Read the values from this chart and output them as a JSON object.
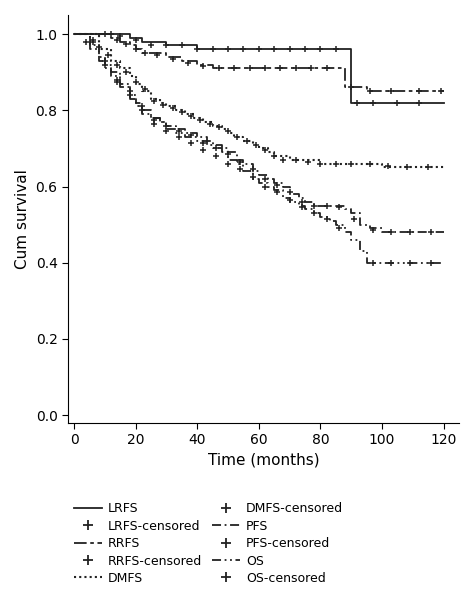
{
  "xlabel": "Time (months)",
  "ylabel": "Cum survival",
  "xlim": [
    -2,
    125
  ],
  "ylim": [
    -0.02,
    1.05
  ],
  "xticks": [
    0,
    20,
    40,
    60,
    80,
    100,
    120
  ],
  "yticks": [
    0.0,
    0.2,
    0.4,
    0.6,
    0.8,
    1.0
  ],
  "figsize": [
    4.74,
    6.04
  ],
  "dpi": 100,
  "color": "#222222",
  "curves": {
    "LRFS": {
      "times": [
        0,
        10,
        18,
        22,
        30,
        40,
        50,
        60,
        70,
        80,
        88,
        90,
        100,
        110,
        120
      ],
      "surv": [
        1.0,
        1.0,
        0.99,
        0.98,
        0.97,
        0.96,
        0.96,
        0.96,
        0.96,
        0.96,
        0.96,
        0.82,
        0.82,
        0.82,
        0.82
      ],
      "censored_times": [
        12,
        15,
        20,
        25,
        30,
        35,
        40,
        45,
        50,
        55,
        60,
        65,
        70,
        75,
        80,
        85,
        92,
        97,
        105,
        112
      ],
      "censored_surv": [
        1.0,
        0.995,
        0.985,
        0.97,
        0.97,
        0.97,
        0.96,
        0.96,
        0.96,
        0.96,
        0.96,
        0.96,
        0.96,
        0.96,
        0.96,
        0.96,
        0.82,
        0.82,
        0.82,
        0.82
      ]
    },
    "RRFS": {
      "times": [
        0,
        8,
        12,
        15,
        18,
        20,
        22,
        25,
        30,
        35,
        40,
        45,
        50,
        55,
        60,
        65,
        70,
        75,
        80,
        85,
        88,
        95,
        100,
        110,
        120
      ],
      "surv": [
        1.0,
        1.0,
        0.99,
        0.98,
        0.97,
        0.96,
        0.95,
        0.95,
        0.94,
        0.93,
        0.92,
        0.91,
        0.91,
        0.91,
        0.91,
        0.91,
        0.91,
        0.91,
        0.91,
        0.91,
        0.86,
        0.85,
        0.85,
        0.85,
        0.85
      ],
      "censored_times": [
        10,
        14,
        17,
        20,
        23,
        27,
        32,
        37,
        42,
        47,
        52,
        57,
        62,
        67,
        72,
        77,
        82,
        90,
        96,
        103,
        112,
        119
      ],
      "censored_surv": [
        1.0,
        0.985,
        0.975,
        0.96,
        0.95,
        0.945,
        0.935,
        0.925,
        0.915,
        0.91,
        0.91,
        0.91,
        0.91,
        0.91,
        0.91,
        0.91,
        0.91,
        0.86,
        0.85,
        0.85,
        0.85,
        0.85
      ]
    },
    "DMFS": {
      "times": [
        0,
        8,
        12,
        15,
        18,
        20,
        22,
        25,
        28,
        30,
        33,
        36,
        39,
        42,
        45,
        48,
        50,
        52,
        55,
        58,
        60,
        63,
        65,
        70,
        75,
        80,
        85,
        90,
        95,
        100,
        110,
        120
      ],
      "surv": [
        1.0,
        0.96,
        0.93,
        0.91,
        0.89,
        0.87,
        0.85,
        0.83,
        0.82,
        0.81,
        0.8,
        0.79,
        0.78,
        0.77,
        0.76,
        0.75,
        0.74,
        0.73,
        0.72,
        0.71,
        0.7,
        0.69,
        0.68,
        0.67,
        0.67,
        0.66,
        0.66,
        0.66,
        0.66,
        0.65,
        0.65,
        0.65
      ],
      "censored_times": [
        4,
        8,
        11,
        14,
        17,
        20,
        23,
        26,
        29,
        32,
        35,
        38,
        41,
        44,
        47,
        50,
        53,
        56,
        59,
        62,
        65,
        68,
        72,
        76,
        80,
        85,
        90,
        96,
        102,
        108,
        115
      ],
      "censored_surv": [
        0.98,
        0.965,
        0.945,
        0.92,
        0.9,
        0.875,
        0.855,
        0.825,
        0.815,
        0.805,
        0.795,
        0.785,
        0.775,
        0.765,
        0.755,
        0.745,
        0.73,
        0.72,
        0.71,
        0.695,
        0.68,
        0.67,
        0.67,
        0.665,
        0.66,
        0.66,
        0.66,
        0.66,
        0.655,
        0.65,
        0.65
      ]
    },
    "PFS": {
      "times": [
        0,
        5,
        8,
        10,
        12,
        15,
        18,
        20,
        22,
        25,
        28,
        30,
        33,
        36,
        40,
        43,
        45,
        48,
        50,
        53,
        55,
        58,
        60,
        63,
        65,
        68,
        70,
        73,
        75,
        78,
        80,
        83,
        85,
        88,
        90,
        93,
        96,
        100,
        105,
        110,
        120
      ],
      "surv": [
        1.0,
        0.97,
        0.94,
        0.92,
        0.9,
        0.87,
        0.84,
        0.82,
        0.8,
        0.78,
        0.77,
        0.76,
        0.75,
        0.74,
        0.73,
        0.72,
        0.71,
        0.7,
        0.69,
        0.67,
        0.66,
        0.64,
        0.63,
        0.62,
        0.61,
        0.6,
        0.58,
        0.57,
        0.56,
        0.55,
        0.55,
        0.55,
        0.55,
        0.54,
        0.53,
        0.5,
        0.49,
        0.48,
        0.48,
        0.48,
        0.48
      ],
      "censored_times": [
        6,
        10,
        14,
        18,
        22,
        26,
        30,
        34,
        38,
        42,
        46,
        50,
        54,
        58,
        62,
        66,
        70,
        74,
        78,
        82,
        86,
        91,
        97,
        103,
        109,
        116
      ],
      "censored_surv": [
        0.985,
        0.93,
        0.88,
        0.85,
        0.81,
        0.775,
        0.76,
        0.745,
        0.735,
        0.715,
        0.7,
        0.685,
        0.665,
        0.645,
        0.62,
        0.605,
        0.585,
        0.56,
        0.55,
        0.55,
        0.545,
        0.515,
        0.485,
        0.48,
        0.48,
        0.48
      ]
    },
    "OS": {
      "times": [
        0,
        5,
        8,
        10,
        12,
        15,
        18,
        20,
        22,
        25,
        28,
        30,
        33,
        36,
        40,
        43,
        45,
        48,
        50,
        53,
        55,
        58,
        60,
        63,
        65,
        68,
        70,
        73,
        75,
        78,
        80,
        83,
        85,
        88,
        90,
        93,
        95,
        100,
        105,
        110,
        120
      ],
      "surv": [
        1.0,
        0.96,
        0.93,
        0.91,
        0.89,
        0.86,
        0.83,
        0.81,
        0.79,
        0.78,
        0.77,
        0.75,
        0.74,
        0.73,
        0.72,
        0.71,
        0.7,
        0.69,
        0.67,
        0.66,
        0.64,
        0.62,
        0.61,
        0.6,
        0.59,
        0.57,
        0.56,
        0.55,
        0.54,
        0.53,
        0.52,
        0.51,
        0.5,
        0.48,
        0.46,
        0.43,
        0.4,
        0.4,
        0.4,
        0.4,
        0.4
      ],
      "censored_times": [
        6,
        10,
        14,
        18,
        22,
        26,
        30,
        34,
        38,
        42,
        46,
        50,
        54,
        58,
        62,
        66,
        70,
        74,
        78,
        82,
        86,
        97,
        103,
        109,
        116
      ],
      "censored_surv": [
        0.98,
        0.92,
        0.875,
        0.84,
        0.8,
        0.765,
        0.745,
        0.73,
        0.715,
        0.695,
        0.68,
        0.66,
        0.645,
        0.625,
        0.6,
        0.585,
        0.565,
        0.545,
        0.53,
        0.515,
        0.49,
        0.4,
        0.4,
        0.4,
        0.4
      ]
    }
  },
  "legend_curves": [
    "LRFS",
    "RRFS",
    "DMFS",
    "PFS",
    "OS"
  ],
  "legend_censored": [
    "LRFS-censored",
    "RRFS-censored",
    "DMFS-censored",
    "PFS-censored",
    "OS-censored"
  ]
}
